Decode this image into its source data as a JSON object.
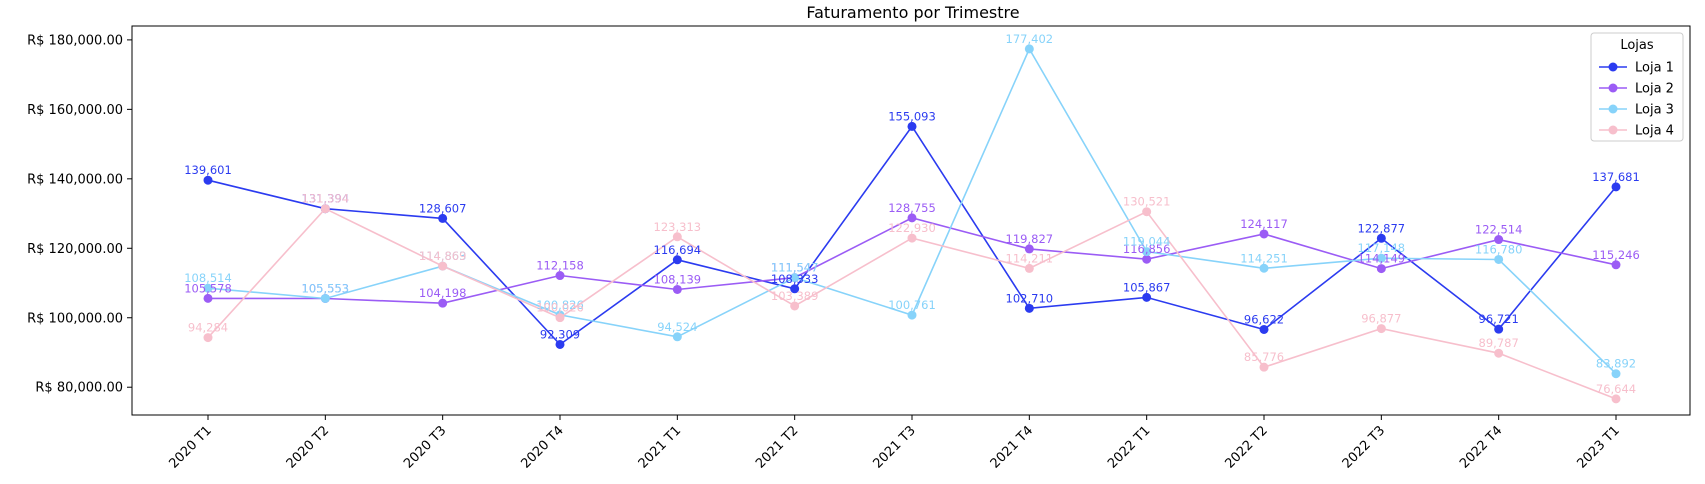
{
  "chart_data": {
    "type": "line",
    "title": "Faturamento por Trimestre",
    "xlabel": "",
    "ylabel": "",
    "categories": [
      "2020 T1",
      "2020 T2",
      "2020 T3",
      "2020 T4",
      "2021 T1",
      "2021 T2",
      "2021 T3",
      "2021 T4",
      "2022 T1",
      "2022 T2",
      "2022 T3",
      "2022 T4",
      "2023 T1"
    ],
    "ylim": [
      72000,
      184000
    ],
    "yticks": [
      80000,
      100000,
      120000,
      140000,
      160000,
      180000
    ],
    "ytick_labels": [
      "R$ 80,000.00",
      "R$ 100,000.00",
      "R$ 120,000.00",
      "R$ 140,000.00",
      "R$ 160,000.00",
      "R$ 180,000.00"
    ],
    "grid": false,
    "legend": {
      "title": "Lojas",
      "placement": "top-right"
    },
    "series": [
      {
        "name": "Loja 1",
        "color": "#2b3bf0",
        "values": [
          139601,
          131394,
          128607,
          92309,
          116694,
          108333,
          155093,
          102710,
          105867,
          96622,
          122877,
          96721,
          137681
        ],
        "labels": [
          "139,601",
          "131,394",
          "128,607",
          "92,309",
          "116,694",
          "108,333",
          "155,093",
          "102,710",
          "105,867",
          "96,622",
          "122,877",
          "96,721",
          "137,681"
        ]
      },
      {
        "name": "Loja 2",
        "color": "#9b5cf5",
        "values": [
          105578,
          105553,
          104198,
          112158,
          108139,
          111547,
          128755,
          119827,
          116856,
          124117,
          114149,
          122514,
          115246
        ],
        "labels": [
          "105,578",
          "105,553",
          "104,198",
          "112,158",
          "108,139",
          "111,547",
          "128,755",
          "119,827",
          "116,856",
          "124,117",
          "114,149",
          "122,514",
          "115,246"
        ]
      },
      {
        "name": "Loja 3",
        "color": "#87d3fa",
        "values": [
          108514,
          105553,
          114863,
          100826,
          94524,
          111547,
          100761,
          177402,
          119044,
          114251,
          117148,
          116780,
          83892
        ],
        "labels": [
          "108,514",
          "105,553",
          "114,863",
          "100,826",
          "94,524",
          "111,547",
          "100,761",
          "177,402",
          "119,044",
          "114,251",
          "117,148",
          "116,780",
          "83,892"
        ]
      },
      {
        "name": "Loja 4",
        "color": "#f7bfcc",
        "values": [
          94284,
          131394,
          114869,
          100026,
          123313,
          103389,
          122930,
          114211,
          130521,
          85776,
          96877,
          89787,
          76644
        ],
        "labels": [
          "94,284",
          "131,394",
          "114,869",
          "100,026",
          "123,313",
          "103,389",
          "122,930",
          "114,211",
          "130,521",
          "85,776",
          "96,877",
          "89,787",
          "76,644"
        ]
      }
    ]
  }
}
